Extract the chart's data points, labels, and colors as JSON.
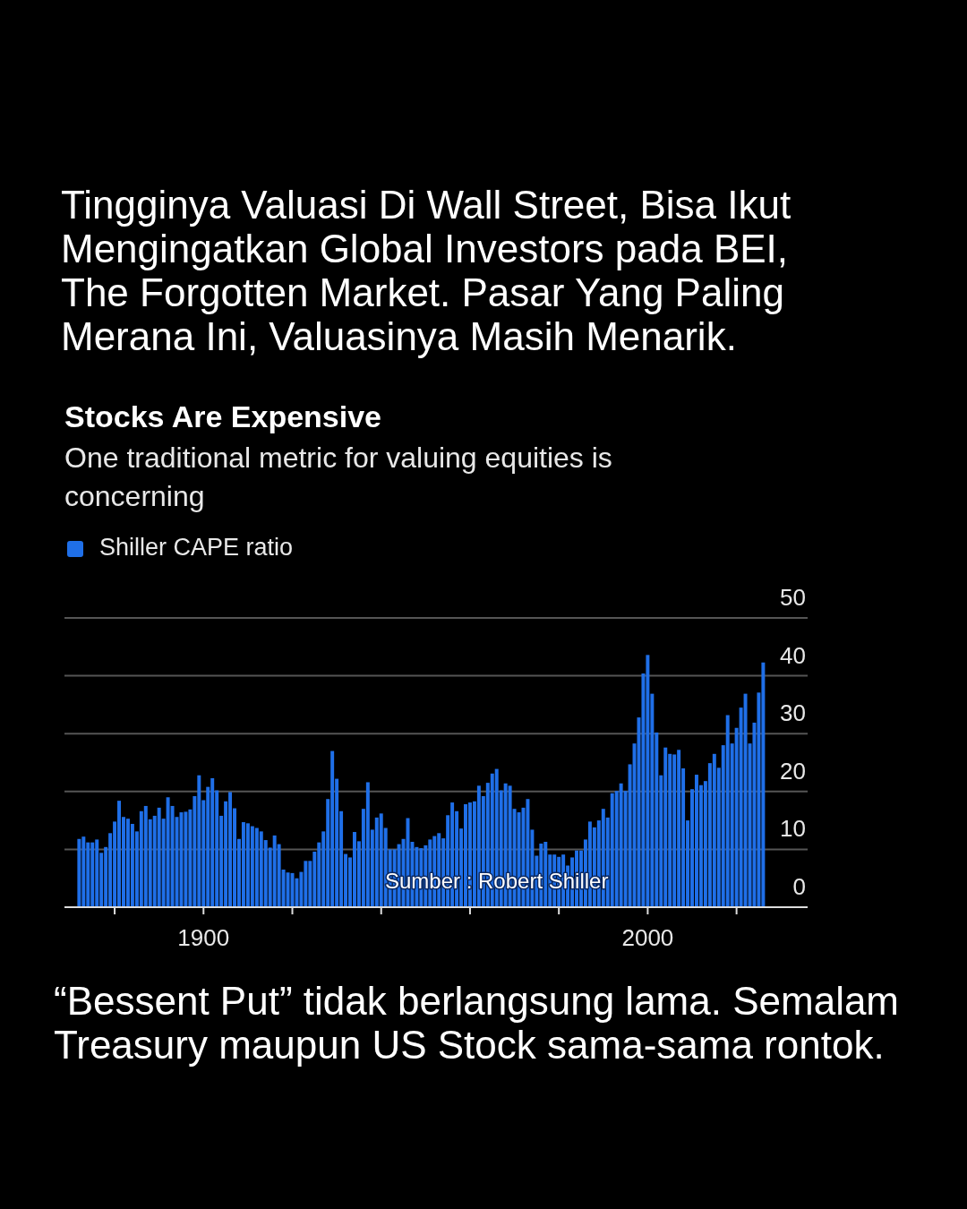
{
  "chart_data": {
    "type": "bar",
    "title": "Stocks Are Expensive",
    "subtitle": "One traditional metric for valuing equities is concerning",
    "annotations": [
      "Tingginya Valuasi Di Wall Street, Bisa Ikut Mengingatkan Global Investors pada BEI, The Forgotten Market. Pasar Yang Paling Merana Ini, Valuasinya Masih Menarik.",
      "Sumber : Robert Shiller",
      "“Bessent Put” tidak berlangsung lama. Semalam Treasury maupun US Stock sama-sama rontok."
    ],
    "x": [
      1872,
      1873,
      1874,
      1875,
      1876,
      1877,
      1878,
      1879,
      1880,
      1881,
      1882,
      1883,
      1884,
      1885,
      1886,
      1887,
      1888,
      1889,
      1890,
      1891,
      1892,
      1893,
      1894,
      1895,
      1896,
      1897,
      1898,
      1899,
      1900,
      1901,
      1902,
      1903,
      1904,
      1905,
      1906,
      1907,
      1908,
      1909,
      1910,
      1911,
      1912,
      1913,
      1914,
      1915,
      1916,
      1917,
      1918,
      1919,
      1920,
      1921,
      1922,
      1923,
      1924,
      1925,
      1926,
      1927,
      1928,
      1929,
      1930,
      1931,
      1932,
      1933,
      1934,
      1935,
      1936,
      1937,
      1938,
      1939,
      1940,
      1941,
      1942,
      1943,
      1944,
      1945,
      1946,
      1947,
      1948,
      1949,
      1950,
      1951,
      1952,
      1953,
      1954,
      1955,
      1956,
      1957,
      1958,
      1959,
      1960,
      1961,
      1962,
      1963,
      1964,
      1965,
      1966,
      1967,
      1968,
      1969,
      1970,
      1971,
      1972,
      1973,
      1974,
      1975,
      1976,
      1977,
      1978,
      1979,
      1980,
      1981,
      1982,
      1983,
      1984,
      1985,
      1986,
      1987,
      1988,
      1989,
      1990,
      1991,
      1992,
      1993,
      1994,
      1995,
      1996,
      1997,
      1998,
      1999,
      2000,
      2001,
      2002,
      2003,
      2004,
      2005,
      2006,
      2007,
      2008,
      2009,
      2010,
      2011,
      2012,
      2013,
      2014,
      2015,
      2016,
      2017,
      2018,
      2019,
      2020,
      2021,
      2022,
      2023,
      2024,
      2025,
      2026
    ],
    "series": [
      {
        "name": "Shiller CAPE ratio",
        "color": "#1f6fe8",
        "values": [
          11.8,
          12.2,
          11.2,
          11.2,
          11.7,
          9.4,
          10.4,
          12.8,
          14.8,
          18.4,
          15.6,
          15.3,
          14.4,
          13.1,
          16.6,
          17.5,
          15.2,
          15.8,
          17.2,
          15.3,
          19.0,
          17.5,
          15.6,
          16.4,
          16.5,
          16.9,
          19.2,
          22.8,
          18.5,
          20.8,
          22.3,
          20.2,
          15.8,
          18.3,
          19.9,
          17.1,
          11.8,
          14.7,
          14.5,
          14.0,
          13.7,
          13.1,
          11.6,
          10.3,
          12.4,
          10.9,
          6.5,
          6.0,
          5.9,
          5.0,
          6.1,
          8.0,
          8.0,
          9.6,
          11.2,
          13.1,
          18.7,
          27.0,
          22.2,
          16.6,
          9.2,
          8.6,
          13.0,
          11.4,
          17.0,
          21.6,
          13.4,
          15.5,
          16.2,
          13.7,
          10.0,
          10.0,
          10.9,
          11.8,
          15.4,
          11.3,
          10.4,
          10.2,
          10.7,
          11.7,
          12.3,
          12.8,
          11.9,
          15.9,
          18.1,
          16.6,
          13.6,
          17.8,
          18.1,
          18.3,
          21.0,
          19.2,
          21.5,
          23.1,
          23.9,
          20.2,
          21.4,
          21.0,
          17.0,
          16.4,
          17.2,
          18.7,
          13.4,
          8.9,
          11.0,
          11.3,
          9.1,
          9.1,
          8.7,
          9.1,
          7.2,
          8.6,
          9.8,
          9.8,
          11.7,
          14.8,
          13.8,
          15.0,
          17.0,
          15.5,
          19.7,
          20.1,
          21.4,
          20.1,
          24.7,
          28.3,
          32.8,
          40.4,
          43.6,
          36.9,
          30.2,
          22.8,
          27.6,
          26.5,
          26.4,
          27.2,
          24.0,
          15.0,
          20.4,
          22.9,
          21.1,
          21.8,
          24.9,
          26.5,
          24.1,
          28.0,
          33.2,
          28.3,
          31.0,
          34.5,
          36.9,
          28.3,
          31.9,
          37.1,
          42.3
        ]
      }
    ],
    "xlim": [
      1868.7,
      2036
    ],
    "xticks": [
      {
        "value": 1880,
        "label": null
      },
      1900,
      {
        "value": 1920,
        "label": null
      },
      {
        "value": 1940,
        "label": null
      },
      {
        "value": 1960,
        "label": null
      },
      {
        "value": 1980,
        "label": null
      },
      2000,
      {
        "value": 2020,
        "label": null
      }
    ],
    "ylim": [
      0,
      50
    ],
    "yticks": [
      0,
      10,
      20,
      30,
      40,
      50
    ],
    "grid": "y",
    "legend": "top left"
  }
}
